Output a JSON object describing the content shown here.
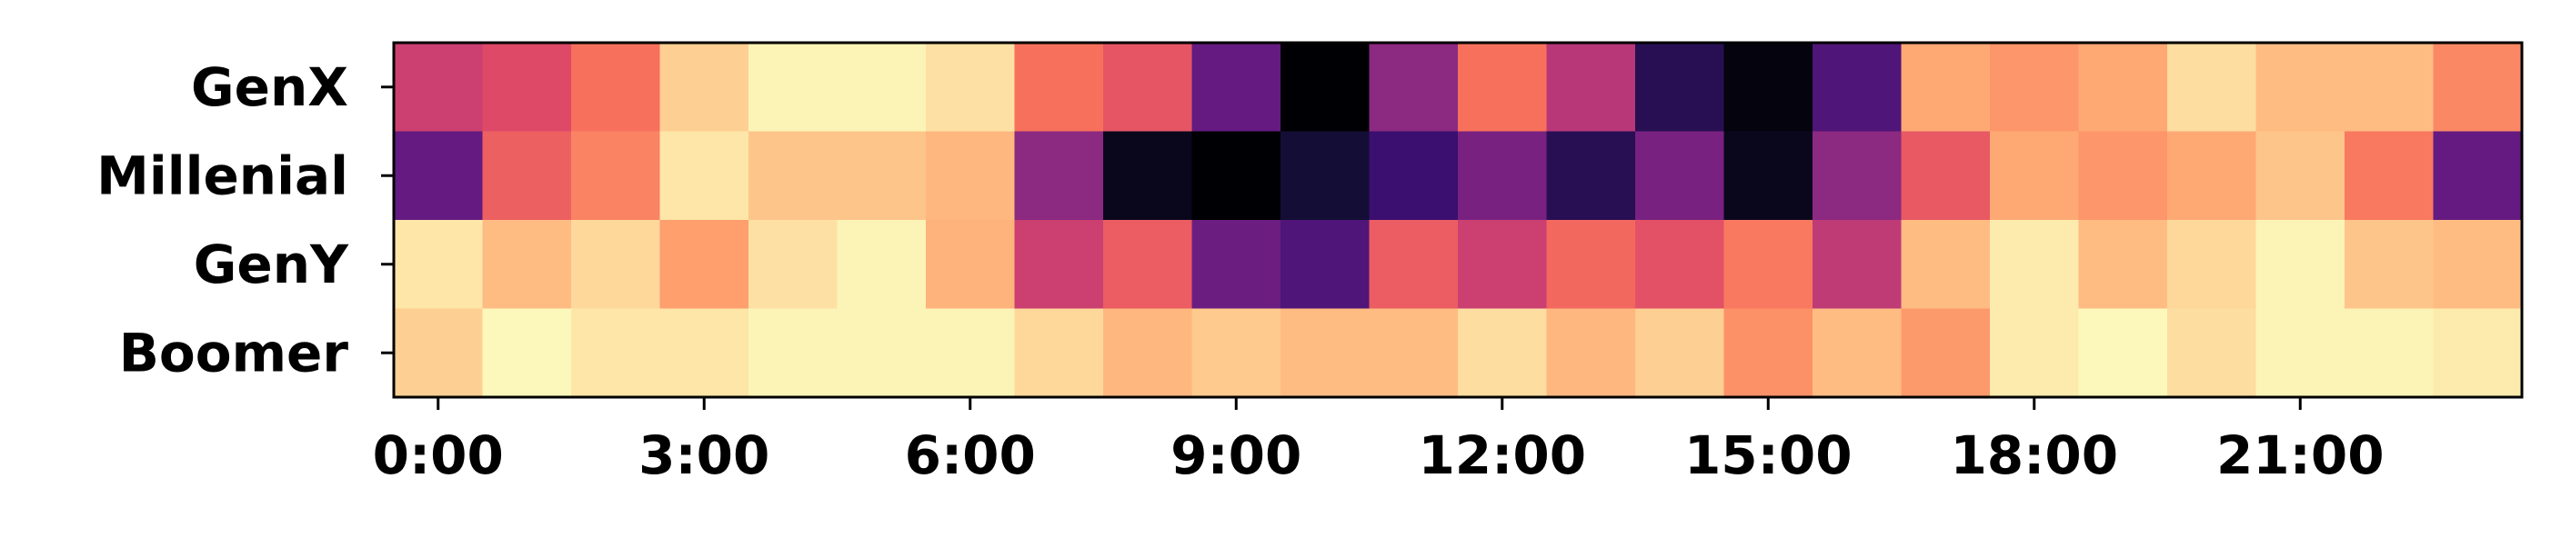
{
  "chart_data": {
    "type": "heatmap",
    "colormap": "magma",
    "rows": [
      "GenX",
      "Millenial",
      "GenY",
      "Boomer"
    ],
    "columns": [
      "0:00",
      "1:00",
      "2:00",
      "3:00",
      "4:00",
      "5:00",
      "6:00",
      "7:00",
      "8:00",
      "9:00",
      "10:00",
      "11:00",
      "12:00",
      "13:00",
      "14:00",
      "15:00",
      "16:00",
      "17:00",
      "18:00",
      "19:00",
      "20:00",
      "21:00",
      "22:00",
      "23:00"
    ],
    "x_tick_labels": [
      "0:00",
      "3:00",
      "6:00",
      "9:00",
      "12:00",
      "15:00",
      "18:00",
      "21:00"
    ],
    "x_tick_every": 3,
    "title": "",
    "xlabel": "",
    "ylabel": "",
    "values": [
      [
        0.55,
        0.6,
        0.7,
        0.9,
        0.98,
        0.98,
        0.94,
        0.7,
        0.63,
        0.3,
        0.0,
        0.4,
        0.7,
        0.5,
        0.15,
        0.02,
        0.25,
        0.82,
        0.78,
        0.82,
        0.93,
        0.86,
        0.86,
        0.75
      ],
      [
        0.3,
        0.66,
        0.74,
        0.95,
        0.88,
        0.88,
        0.85,
        0.4,
        0.05,
        0.0,
        0.1,
        0.2,
        0.35,
        0.15,
        0.35,
        0.05,
        0.4,
        0.64,
        0.82,
        0.78,
        0.82,
        0.88,
        0.72,
        0.3
      ],
      [
        0.95,
        0.86,
        0.92,
        0.8,
        0.94,
        0.98,
        0.84,
        0.55,
        0.65,
        0.32,
        0.25,
        0.65,
        0.55,
        0.68,
        0.62,
        0.72,
        0.52,
        0.86,
        0.96,
        0.86,
        0.92,
        0.98,
        0.88,
        0.86
      ],
      [
        0.9,
        0.99,
        0.95,
        0.95,
        0.98,
        0.98,
        0.98,
        0.92,
        0.85,
        0.89,
        0.86,
        0.86,
        0.93,
        0.85,
        0.9,
        0.77,
        0.86,
        0.79,
        0.96,
        0.99,
        0.93,
        0.98,
        0.98,
        0.96
      ]
    ]
  }
}
